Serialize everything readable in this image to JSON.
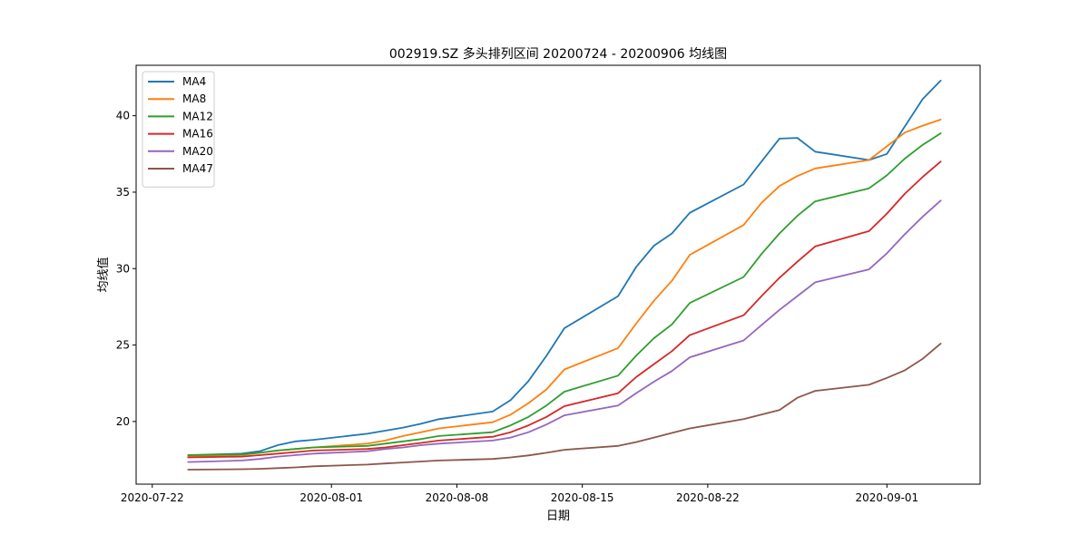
{
  "chart_data": {
    "type": "line",
    "title": "002919.SZ 多头排列区间 20200724 - 20200906 均线图",
    "xlabel": "日期",
    "ylabel": "均线值",
    "x_ticks": [
      "2020-07-22",
      "2020-08-01",
      "2020-08-08",
      "2020-08-15",
      "2020-08-22",
      "2020-09-01"
    ],
    "y_ticks": [
      20,
      25,
      30,
      35,
      40
    ],
    "xlim": [
      "2020-07-22",
      "2020-09-06"
    ],
    "ylim": [
      15.9,
      43.3
    ],
    "legend_position": "upper-left",
    "grid": false,
    "x": [
      "2020-07-24",
      "2020-07-27",
      "2020-07-28",
      "2020-07-29",
      "2020-07-30",
      "2020-07-31",
      "2020-08-03",
      "2020-08-04",
      "2020-08-05",
      "2020-08-06",
      "2020-08-07",
      "2020-08-10",
      "2020-08-11",
      "2020-08-12",
      "2020-08-13",
      "2020-08-14",
      "2020-08-17",
      "2020-08-18",
      "2020-08-19",
      "2020-08-20",
      "2020-08-21",
      "2020-08-24",
      "2020-08-25",
      "2020-08-26",
      "2020-08-27",
      "2020-08-28",
      "2020-08-31",
      "2020-09-01",
      "2020-09-02",
      "2020-09-03",
      "2020-09-04"
    ],
    "series": [
      {
        "name": "MA4",
        "color": "#1f77b4",
        "values": [
          17.8,
          17.9,
          18.05,
          18.45,
          18.7,
          18.8,
          19.2,
          19.4,
          19.6,
          19.85,
          20.15,
          20.65,
          21.4,
          22.65,
          24.3,
          26.1,
          28.2,
          30.1,
          31.5,
          32.3,
          33.65,
          35.5,
          37.0,
          38.5,
          38.55,
          37.65,
          37.1,
          37.5,
          39.3,
          41.1,
          42.3
        ]
      },
      {
        "name": "MA8",
        "color": "#ff7f0e",
        "values": [
          17.7,
          17.8,
          17.95,
          18.1,
          18.2,
          18.3,
          18.55,
          18.75,
          19.05,
          19.3,
          19.55,
          19.95,
          20.45,
          21.2,
          22.1,
          23.4,
          24.8,
          26.4,
          27.9,
          29.2,
          30.9,
          32.85,
          34.3,
          35.4,
          36.05,
          36.55,
          37.1,
          38.0,
          38.9,
          39.35,
          39.75
        ]
      },
      {
        "name": "MA12",
        "color": "#2ca02c",
        "values": [
          17.8,
          17.85,
          17.95,
          18.1,
          18.2,
          18.3,
          18.4,
          18.55,
          18.7,
          18.85,
          19.05,
          19.3,
          19.75,
          20.3,
          21.05,
          21.95,
          23.0,
          24.3,
          25.45,
          26.35,
          27.75,
          29.45,
          30.95,
          32.3,
          33.45,
          34.4,
          35.25,
          36.1,
          37.2,
          38.1,
          38.85
        ]
      },
      {
        "name": "MA16",
        "color": "#d62728",
        "values": [
          17.65,
          17.7,
          17.8,
          17.9,
          18.0,
          18.1,
          18.2,
          18.3,
          18.45,
          18.6,
          18.75,
          19.0,
          19.3,
          19.75,
          20.3,
          21.0,
          21.85,
          22.9,
          23.75,
          24.6,
          25.65,
          26.95,
          28.2,
          29.4,
          30.45,
          31.45,
          32.45,
          33.6,
          34.9,
          36.0,
          37.0
        ]
      },
      {
        "name": "MA20",
        "color": "#9467bd",
        "values": [
          17.35,
          17.45,
          17.55,
          17.7,
          17.8,
          17.9,
          18.05,
          18.2,
          18.3,
          18.45,
          18.55,
          18.75,
          18.95,
          19.3,
          19.8,
          20.4,
          21.05,
          21.85,
          22.6,
          23.3,
          24.2,
          25.3,
          26.3,
          27.3,
          28.2,
          29.1,
          29.95,
          31.0,
          32.25,
          33.4,
          34.45
        ]
      },
      {
        "name": "MA47",
        "color": "#8c564b",
        "values": [
          16.85,
          16.88,
          16.9,
          16.95,
          17.0,
          17.07,
          17.18,
          17.25,
          17.32,
          17.38,
          17.45,
          17.55,
          17.65,
          17.78,
          17.95,
          18.15,
          18.4,
          18.65,
          18.95,
          19.25,
          19.55,
          20.15,
          20.45,
          20.75,
          21.55,
          22.0,
          22.4,
          22.85,
          23.35,
          24.1,
          25.1
        ]
      }
    ]
  }
}
